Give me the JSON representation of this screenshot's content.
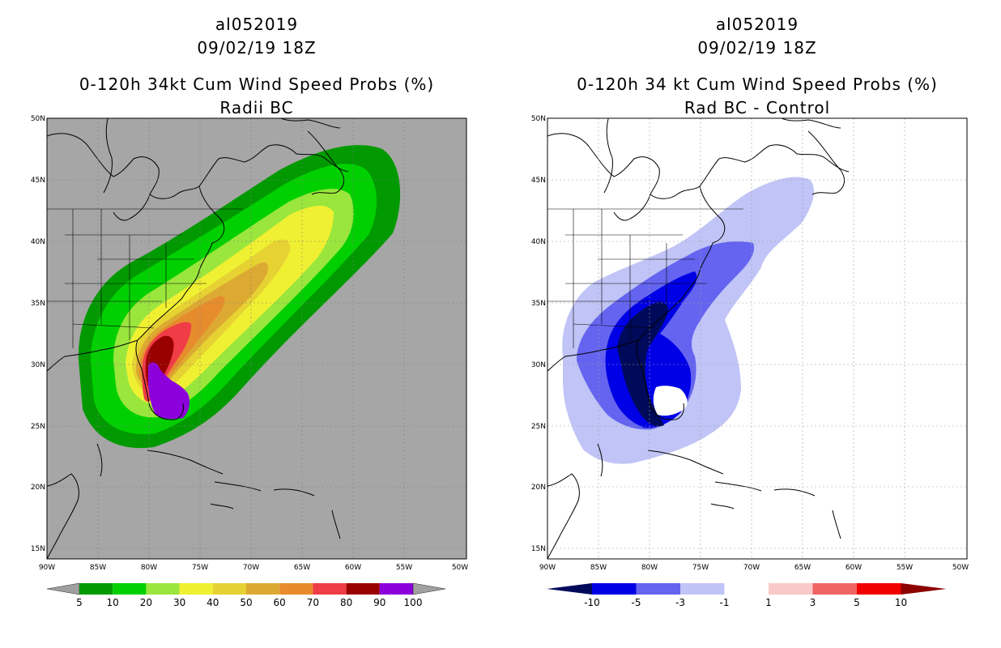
{
  "left_panel": {
    "title_line1": "al052019",
    "title_line2": "09/02/19 18Z",
    "title_line3": "0-120h 34kt Cum Wind Speed Probs (%)",
    "title_line4": "Radii BC",
    "background_color": "#a6a6a6",
    "colorbar": {
      "colors": [
        "#009a00",
        "#00d000",
        "#9ae63c",
        "#f0f032",
        "#e6d232",
        "#dcaa32",
        "#e68c2d",
        "#f03c46",
        "#9a0000",
        "#8c00dc"
      ],
      "labels": [
        "5",
        "10",
        "20",
        "30",
        "40",
        "50",
        "60",
        "70",
        "80",
        "90",
        "100"
      ],
      "end_color": "#a0a0a0"
    }
  },
  "right_panel": {
    "title_line1": "al052019",
    "title_line2": "09/02/19 18Z",
    "title_line3": "0-120h 34 kt Cum Wind Speed Probs (%)",
    "title_line4": "Rad BC - Control",
    "background_color": "#ffffff",
    "colorbar": {
      "colors": [
        "#000a5a",
        "#0000e6",
        "#6464f0",
        "#c0c4f6",
        "#ffffff",
        "#fac8c8",
        "#f06464",
        "#f00000",
        "#8c0000"
      ],
      "labels": [
        "-10",
        "-5",
        "-3",
        "-1",
        "1",
        "3",
        "5",
        "10"
      ]
    }
  },
  "axes": {
    "lat_labels": [
      "50N",
      "45N",
      "40N",
      "35N",
      "30N",
      "25N",
      "20N",
      "15N"
    ],
    "lon_labels": [
      "90W",
      "85W",
      "80W",
      "75W",
      "70W",
      "65W",
      "60W",
      "55W",
      "50W"
    ]
  }
}
